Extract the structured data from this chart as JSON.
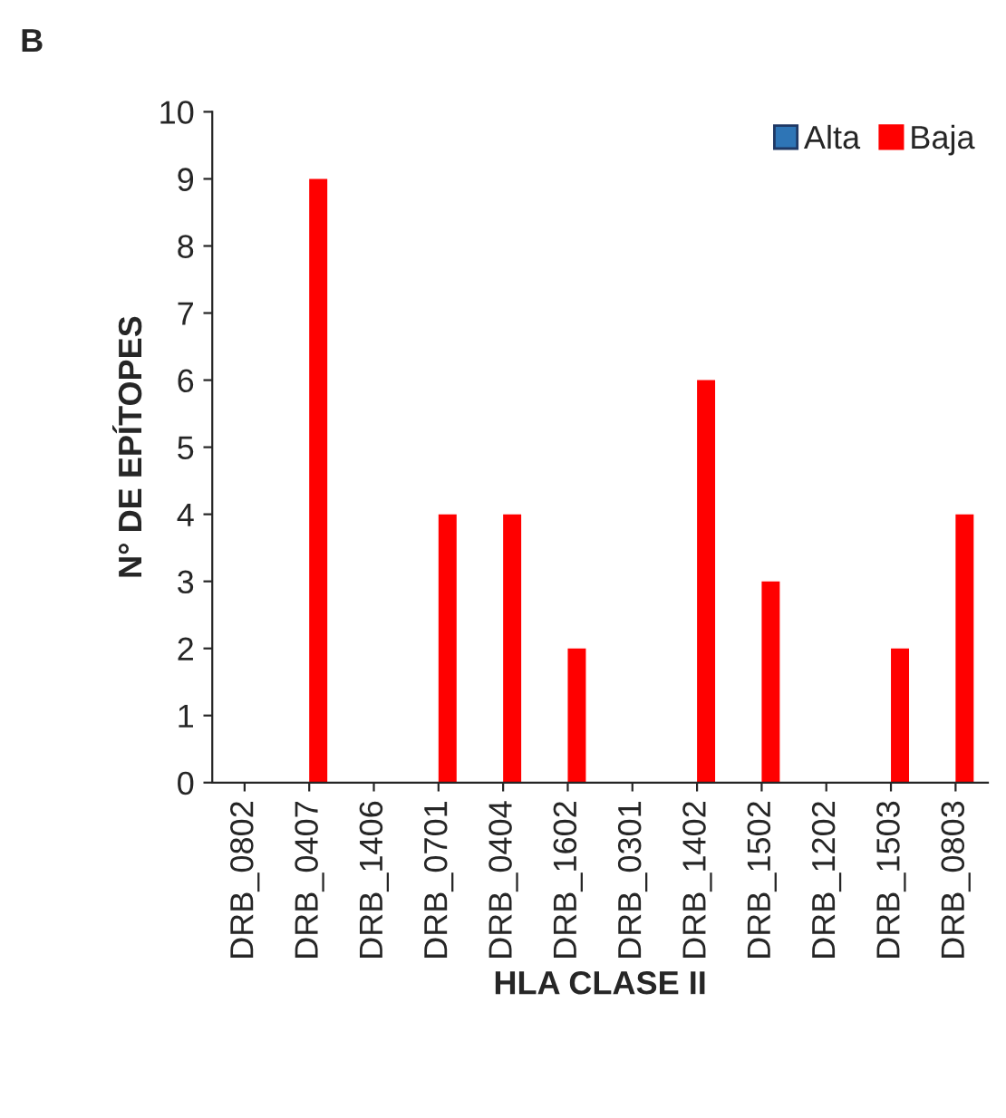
{
  "chart_data": {
    "type": "bar",
    "annotations": [
      "B"
    ],
    "xlabel": "HLA CLASE II",
    "ylabel": "N° DE EPÍTOPES",
    "categories": [
      "DRB_0802",
      "DRB_0407",
      "DRB_1406",
      "DRB_0701",
      "DRB_0404",
      "DRB_1602",
      "DRB_0301",
      "DRB_1402",
      "DRB_1502",
      "DRB_1202",
      "DRB_1503",
      "DRB_0803"
    ],
    "series": [
      {
        "name": "Alta",
        "color": "#2e75b6",
        "values": [
          0,
          0,
          0,
          0,
          0,
          0,
          0,
          0,
          0,
          0,
          0,
          0
        ]
      },
      {
        "name": "Baja",
        "color": "#ff0000",
        "values": [
          0,
          9,
          0,
          4,
          4,
          2,
          0,
          6,
          3,
          0,
          2,
          4
        ]
      }
    ],
    "ylim": [
      0,
      10
    ],
    "yticks": [
      0,
      1,
      2,
      3,
      4,
      5,
      6,
      7,
      8,
      9,
      10
    ],
    "legend": "top right",
    "grid": false
  }
}
